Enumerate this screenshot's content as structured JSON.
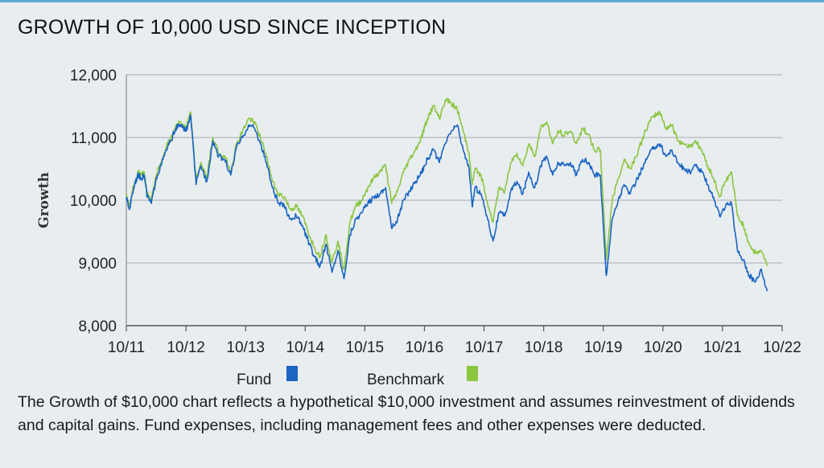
{
  "title": "GROWTH OF 10,000 USD SINCE INCEPTION",
  "footnote": "The Growth of $10,000 chart reflects a hypothetical $10,000 investment and assumes reinvestment of dividends and capital gains. Fund expenses, including management fees and other expenses were deducted.",
  "colors": {
    "fund": "#1a64c2",
    "benchmark": "#8cc63f",
    "grid": "#a7acb0",
    "top_rule": "#5fa8d8"
  },
  "chart_data": {
    "type": "line",
    "title": "GROWTH OF 10,000 USD SINCE INCEPTION",
    "xlabel": "",
    "ylabel": "Growth",
    "ylim": [
      8000,
      12000
    ],
    "yticks": [
      8000,
      9000,
      10000,
      11000,
      12000
    ],
    "ytick_labels": [
      "8,000",
      "9,000",
      "10,000",
      "11,000",
      "12,000"
    ],
    "xlim": [
      2011.75,
      2022.75
    ],
    "xticks": [
      2011.75,
      2012.75,
      2013.75,
      2014.75,
      2015.75,
      2016.75,
      2017.75,
      2018.75,
      2019.75,
      2020.75,
      2021.75,
      2022.75
    ],
    "xtick_labels": [
      "10/11",
      "10/12",
      "10/13",
      "10/14",
      "10/15",
      "10/16",
      "10/17",
      "10/18",
      "10/19",
      "10/20",
      "10/21",
      "10/22"
    ],
    "grid": true,
    "legend": [
      "Fund",
      "Benchmark"
    ],
    "legend_position": "bottom",
    "series": [
      {
        "name": "Fund",
        "color": "#1a64c2",
        "x": [
          2011.75,
          2011.8,
          2011.85,
          2011.9,
          2011.95,
          2012.0,
          2012.05,
          2012.1,
          2012.17,
          2012.25,
          2012.33,
          2012.42,
          2012.5,
          2012.58,
          2012.66,
          2012.75,
          2012.83,
          2012.92,
          2013.0,
          2013.1,
          2013.2,
          2013.3,
          2013.4,
          2013.5,
          2013.6,
          2013.7,
          2013.8,
          2013.9,
          2014.0,
          2014.1,
          2014.2,
          2014.3,
          2014.4,
          2014.5,
          2014.6,
          2014.7,
          2014.8,
          2014.9,
          2015.0,
          2015.1,
          2015.2,
          2015.3,
          2015.4,
          2015.5,
          2015.6,
          2015.7,
          2015.8,
          2015.9,
          2016.0,
          2016.1,
          2016.2,
          2016.3,
          2016.4,
          2016.5,
          2016.6,
          2016.7,
          2016.75,
          2016.8,
          2016.9,
          2017.0,
          2017.1,
          2017.2,
          2017.3,
          2017.4,
          2017.5,
          2017.55,
          2017.6,
          2017.7,
          2017.8,
          2017.9,
          2018.0,
          2018.1,
          2018.2,
          2018.3,
          2018.4,
          2018.5,
          2018.6,
          2018.7,
          2018.8,
          2018.9,
          2019.0,
          2019.1,
          2019.2,
          2019.3,
          2019.4,
          2019.5,
          2019.6,
          2019.7,
          2019.75,
          2019.8,
          2019.9,
          2020.0,
          2020.1,
          2020.2,
          2020.3,
          2020.4,
          2020.5,
          2020.6,
          2020.7,
          2020.8,
          2020.9,
          2021.0,
          2021.1,
          2021.2,
          2021.3,
          2021.4,
          2021.5,
          2021.6,
          2021.7,
          2021.8,
          2021.9,
          2022.0,
          2022.1,
          2022.2,
          2022.3,
          2022.4,
          2022.5
        ],
        "values": [
          10050,
          9850,
          10100,
          10300,
          10400,
          10350,
          10400,
          10050,
          9950,
          10350,
          10550,
          10800,
          10950,
          11150,
          11200,
          11100,
          11350,
          10250,
          10550,
          10300,
          10950,
          10700,
          10650,
          10400,
          10850,
          11000,
          11200,
          11150,
          10900,
          10600,
          10200,
          9950,
          9900,
          9700,
          9750,
          9600,
          9350,
          9100,
          8950,
          9300,
          8850,
          9200,
          8750,
          9450,
          9700,
          9800,
          9950,
          10050,
          10100,
          10200,
          9550,
          9700,
          10000,
          10150,
          10300,
          10450,
          10550,
          10650,
          10800,
          10600,
          10900,
          11100,
          11200,
          10800,
          10500,
          9900,
          10200,
          10100,
          9750,
          9350,
          9800,
          9750,
          10150,
          10300,
          10100,
          10450,
          10200,
          10550,
          10700,
          10400,
          10600,
          10550,
          10600,
          10400,
          10650,
          10600,
          10400,
          10400,
          9600,
          8800,
          9700,
          10000,
          10250,
          10100,
          10300,
          10500,
          10700,
          10850,
          10900,
          10700,
          10800,
          10600,
          10500,
          10450,
          10550,
          10450,
          10250,
          10050,
          9750,
          9900,
          9950,
          9200,
          9050,
          8800,
          8700,
          8900,
          8550
        ]
      },
      {
        "name": "Benchmark",
        "color": "#8cc63f",
        "x": [
          2011.75,
          2011.8,
          2011.85,
          2011.9,
          2011.95,
          2012.0,
          2012.05,
          2012.1,
          2012.17,
          2012.25,
          2012.33,
          2012.42,
          2012.5,
          2012.58,
          2012.66,
          2012.75,
          2012.83,
          2012.92,
          2013.0,
          2013.1,
          2013.2,
          2013.3,
          2013.4,
          2013.5,
          2013.6,
          2013.7,
          2013.8,
          2013.9,
          2014.0,
          2014.1,
          2014.2,
          2014.3,
          2014.4,
          2014.5,
          2014.6,
          2014.7,
          2014.8,
          2014.9,
          2015.0,
          2015.1,
          2015.2,
          2015.3,
          2015.4,
          2015.5,
          2015.6,
          2015.7,
          2015.8,
          2015.9,
          2016.0,
          2016.1,
          2016.2,
          2016.3,
          2016.4,
          2016.5,
          2016.6,
          2016.7,
          2016.75,
          2016.8,
          2016.9,
          2017.0,
          2017.1,
          2017.2,
          2017.3,
          2017.4,
          2017.5,
          2017.55,
          2017.6,
          2017.7,
          2017.8,
          2017.9,
          2018.0,
          2018.1,
          2018.2,
          2018.3,
          2018.4,
          2018.5,
          2018.6,
          2018.7,
          2018.8,
          2018.9,
          2019.0,
          2019.1,
          2019.2,
          2019.3,
          2019.4,
          2019.5,
          2019.6,
          2019.7,
          2019.75,
          2019.8,
          2019.9,
          2020.0,
          2020.1,
          2020.2,
          2020.3,
          2020.4,
          2020.5,
          2020.6,
          2020.7,
          2020.8,
          2020.9,
          2021.0,
          2021.1,
          2021.2,
          2021.3,
          2021.4,
          2021.5,
          2021.6,
          2021.7,
          2021.8,
          2021.9,
          2022.0,
          2022.1,
          2022.2,
          2022.3,
          2022.4,
          2022.5
        ],
        "values": [
          10100,
          9900,
          10150,
          10300,
          10450,
          10400,
          10450,
          10100,
          10000,
          10400,
          10600,
          10850,
          11000,
          11200,
          11250,
          11150,
          11400,
          10300,
          10600,
          10350,
          11000,
          10750,
          10700,
          10450,
          10900,
          11100,
          11300,
          11250,
          11000,
          10700,
          10300,
          10100,
          10050,
          9850,
          9900,
          9750,
          9500,
          9250,
          9100,
          9450,
          9000,
          9350,
          8900,
          9650,
          9900,
          10000,
          10200,
          10350,
          10450,
          10550,
          9950,
          10150,
          10450,
          10650,
          10800,
          11000,
          11150,
          11300,
          11500,
          11300,
          11600,
          11550,
          11450,
          11100,
          10750,
          10250,
          10500,
          10400,
          10000,
          9650,
          10200,
          10150,
          10600,
          10750,
          10550,
          10900,
          10700,
          11150,
          11250,
          10900,
          11100,
          11050,
          11100,
          10900,
          11150,
          11050,
          10800,
          10800,
          9950,
          9050,
          10000,
          10350,
          10650,
          10500,
          10700,
          10950,
          11200,
          11350,
          11400,
          11150,
          11200,
          10950,
          10900,
          10850,
          10950,
          10800,
          10550,
          10350,
          10050,
          10300,
          10450,
          9750,
          9600,
          9300,
          9150,
          9200,
          8950
        ]
      }
    ]
  }
}
